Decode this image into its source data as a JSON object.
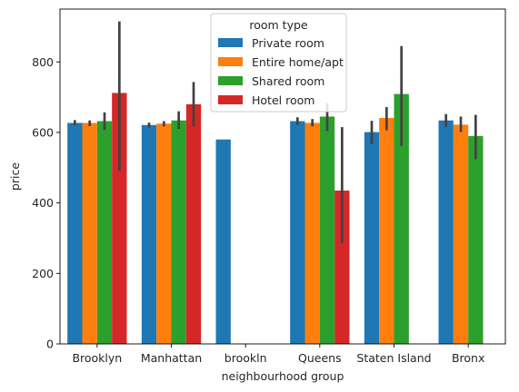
{
  "chart_data": {
    "type": "bar",
    "categories": [
      "Brooklyn",
      "Manhattan",
      "brookln",
      "Queens",
      "Staten Island",
      "Bronx"
    ],
    "series": [
      {
        "name": "Private room",
        "color": "#1f77b4",
        "values": [
          627,
          621,
          580,
          632,
          601,
          634
        ],
        "errors": [
          [
            620,
            635
          ],
          [
            614,
            628
          ],
          null,
          [
            621,
            643
          ],
          [
            567,
            633
          ],
          [
            616,
            652
          ]
        ]
      },
      {
        "name": "Entire home/apt",
        "color": "#ff7f0e",
        "values": [
          627,
          625,
          null,
          627,
          641,
          622
        ],
        "errors": [
          [
            618,
            634
          ],
          [
            617,
            632
          ],
          null,
          [
            617,
            638
          ],
          [
            606,
            672
          ],
          [
            601,
            645
          ]
        ]
      },
      {
        "name": "Shared room",
        "color": "#2ca02c",
        "values": [
          632,
          634,
          null,
          645,
          709,
          590
        ],
        "errors": [
          [
            607,
            657
          ],
          [
            610,
            660
          ],
          null,
          [
            604,
            683
          ],
          [
            561,
            845
          ],
          [
            524,
            650
          ]
        ]
      },
      {
        "name": "Hotel room",
        "color": "#d62728",
        "values": [
          712,
          680,
          null,
          435,
          null,
          null
        ],
        "errors": [
          [
            490,
            915
          ],
          [
            617,
            743
          ],
          null,
          [
            285,
            615
          ],
          null,
          null
        ]
      }
    ],
    "xlabel": "neighbourhood group",
    "ylabel": "price",
    "ylim": [
      0,
      950
    ],
    "yticks": [
      0,
      200,
      400,
      600,
      800
    ],
    "legend": {
      "title": "room type",
      "placement": "top-center"
    },
    "grid": false
  }
}
